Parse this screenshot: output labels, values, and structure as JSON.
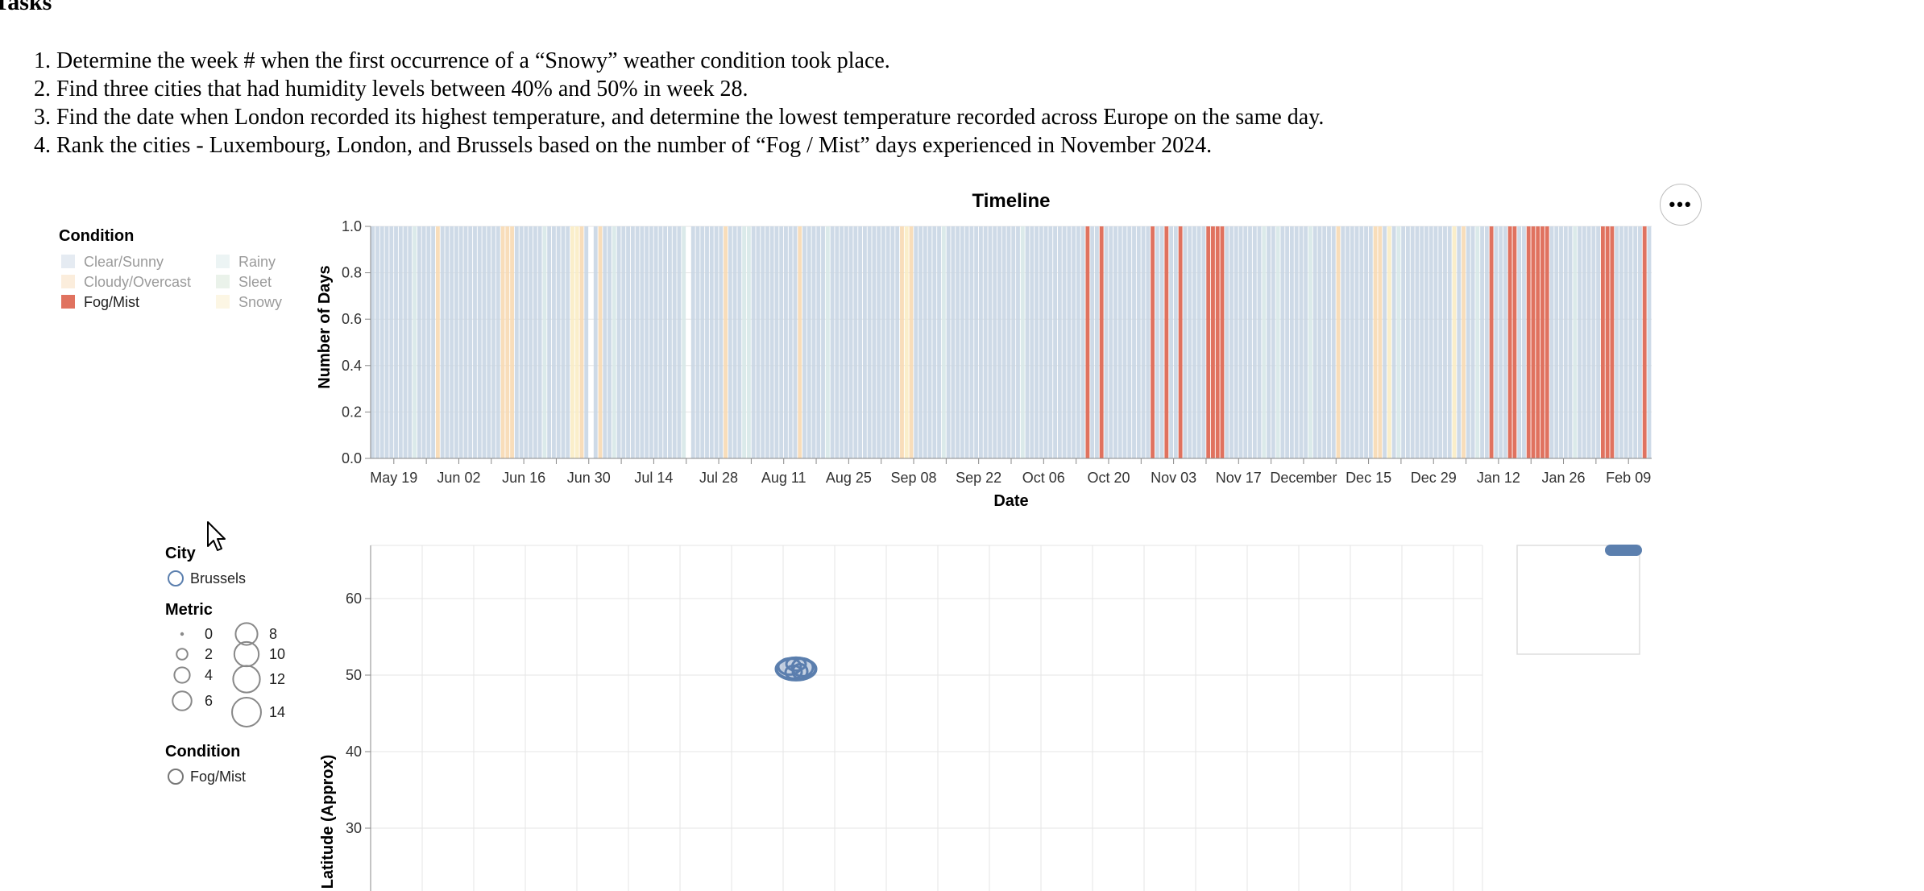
{
  "tasks": {
    "heading": "Tasks",
    "items": [
      "Determine the week # when the first occurrence of a “Snowy” weather condition took place.",
      "Find three cities that had humidity levels between 40% and 50% in week 28.",
      "Find the date when London recorded its highest temperature, and determine the lowest temperature recorded across Europe on the same day.",
      "Rank the cities - Luxembourg, London, and Brussels based on the number of “Fog / Mist” days experienced in November 2024."
    ]
  },
  "colors": {
    "clear_sunny": "#c6d3e3",
    "cloudy_overcast": "#f7d9b3",
    "fog_mist": "#e0725f",
    "rainy": "#d7e8e8",
    "sleet": "#d2e3d2",
    "snowy": "#f9ecc4",
    "point": "#5b7fae",
    "grid": "#e6e6e6",
    "axis": "#888888"
  },
  "more_menu": {
    "icon": "ellipsis-icon",
    "label": "•••"
  },
  "timeline_legend": {
    "title": "Condition",
    "items": [
      {
        "label": "Clear/Sunny",
        "key": "clear_sunny",
        "faded": true
      },
      {
        "label": "Rainy",
        "key": "rainy",
        "faded": true
      },
      {
        "label": "Cloudy/Overcast",
        "key": "cloudy_overcast",
        "faded": true
      },
      {
        "label": "Sleet",
        "key": "sleet",
        "faded": true
      },
      {
        "label": "Fog/Mist",
        "key": "fog_mist",
        "faded": false
      },
      {
        "label": "Snowy",
        "key": "snowy",
        "faded": true
      }
    ]
  },
  "map_legend": {
    "city_title": "City",
    "city_items": [
      "Brussels"
    ],
    "metric_title": "Metric",
    "metric_items": [
      {
        "label": "0",
        "value": 0
      },
      {
        "label": "2",
        "value": 2
      },
      {
        "label": "4",
        "value": 4
      },
      {
        "label": "6",
        "value": 6
      },
      {
        "label": "8",
        "value": 8
      },
      {
        "label": "10",
        "value": 10
      },
      {
        "label": "12",
        "value": 12
      },
      {
        "label": "14",
        "value": 14
      }
    ],
    "condition_title": "Condition",
    "condition_items": [
      "Fog/Mist"
    ]
  },
  "chart_data": [
    {
      "type": "bar",
      "title": "Timeline",
      "xlabel": "Date",
      "ylabel": "Number of Days",
      "ylim": [
        0,
        1
      ],
      "yticks": [
        "0.0",
        "0.2",
        "0.4",
        "0.6",
        "0.8",
        "1.0"
      ],
      "xticks": [
        "May 19",
        "Jun 02",
        "Jun 16",
        "Jun 30",
        "Jul 14",
        "Jul 28",
        "Aug 11",
        "Aug 25",
        "Sep 08",
        "Sep 22",
        "Oct 06",
        "Oct 20",
        "Nov 03",
        "Nov 17",
        "December",
        "Dec 15",
        "Dec 29",
        "Jan 12",
        "Jan 26",
        "Feb 09"
      ],
      "x_domain": [
        "2024-05-14",
        "2025-02-14"
      ],
      "grid": true,
      "legend": "left",
      "fog_mist_days": [
        "2024-10-15",
        "2024-10-18",
        "2024-10-29",
        "2024-11-01",
        "2024-11-04",
        "2024-11-10",
        "2024-11-11",
        "2024-11-12",
        "2024-11-13",
        "2025-01-10",
        "2025-01-14",
        "2025-01-15",
        "2025-01-18",
        "2025-01-19",
        "2025-01-20",
        "2025-01-21",
        "2025-01-22",
        "2025-02-03",
        "2025-02-04",
        "2025-02-05",
        "2025-02-12"
      ],
      "cloudy_overcast_days": [
        "2024-05-28",
        "2024-06-11",
        "2024-06-12",
        "2024-06-13",
        "2024-06-28",
        "2024-07-02",
        "2024-07-29",
        "2024-08-14",
        "2024-09-05",
        "2024-09-07",
        "2024-12-08",
        "2024-12-16",
        "2024-12-17",
        "2025-01-04"
      ],
      "snowy_days": [
        "2024-06-26",
        "2024-06-27",
        "2024-09-06",
        "2024-12-19",
        "2025-01-02"
      ],
      "rainy_days": [
        "2024-05-23",
        "2024-06-20",
        "2024-07-05",
        "2024-07-20",
        "2024-08-02",
        "2024-08-03",
        "2024-08-20",
        "2024-09-14",
        "2024-10-01",
        "2024-11-22",
        "2024-11-25",
        "2024-12-02",
        "2024-12-21",
        "2025-01-07",
        "2025-01-28"
      ],
      "no_data_days": [
        "2024-06-30",
        "2024-07-21"
      ]
    },
    {
      "type": "scatter",
      "xlabel": "",
      "ylabel": "Latitude (Approx)",
      "yticks": [
        "30",
        "40",
        "50",
        "60"
      ],
      "ylim": [
        25,
        67
      ],
      "grid": true,
      "points": [
        {
          "city": "Brussels",
          "latitude": 50.8,
          "condition": "Fog/Mist"
        }
      ],
      "minimap_selection": true
    }
  ]
}
